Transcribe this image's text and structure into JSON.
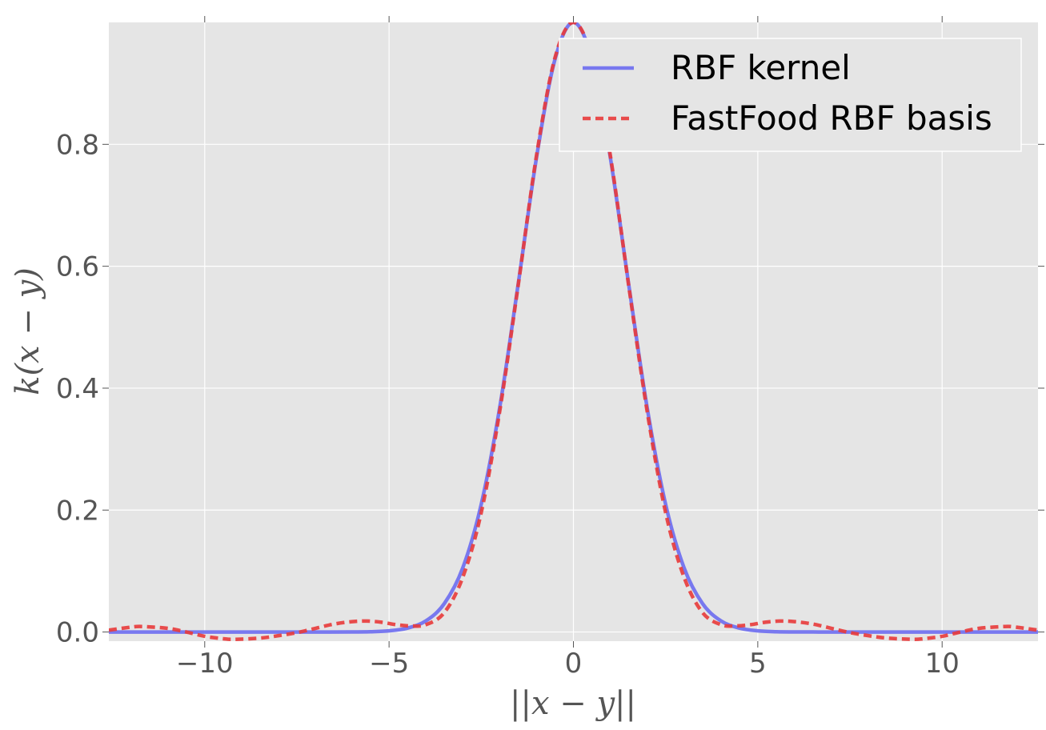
{
  "chart_data": {
    "type": "line",
    "title": "",
    "xlabel": "||x − y||",
    "ylabel": "k(x − y)",
    "xlim": [
      -12.6,
      12.6
    ],
    "ylim": [
      -0.015,
      1.0
    ],
    "grid": true,
    "legend_position": "top-right",
    "x_ticks": [
      -10,
      -5,
      0,
      5,
      10
    ],
    "x_tick_labels": [
      "−10",
      "−5",
      "0",
      "5",
      "10"
    ],
    "y_ticks": [
      0.0,
      0.2,
      0.4,
      0.6,
      0.8
    ],
    "y_tick_labels": [
      "0.0",
      "0.2",
      "0.4",
      "0.6",
      "0.8"
    ],
    "series": [
      {
        "name": "RBF kernel",
        "style": "solid",
        "color": "#6b6bef",
        "x": [
          -12.6,
          -11,
          -10,
          -9,
          -8,
          -7,
          -6,
          -5.5,
          -5,
          -4.5,
          -4,
          -3.5,
          -3,
          -2.5,
          -2,
          -1.5,
          -1,
          -0.5,
          0,
          0.5,
          1,
          1.5,
          2,
          2.5,
          3,
          3.5,
          4,
          4.5,
          5,
          5.5,
          6,
          7,
          8,
          9,
          10,
          11,
          12.6
        ],
        "y": [
          0,
          0,
          0,
          0,
          0,
          0,
          0.0001,
          0.0005,
          0.0019,
          0.0064,
          0.0183,
          0.0468,
          0.1054,
          0.2096,
          0.3679,
          0.5698,
          0.7788,
          0.9394,
          1.0,
          0.9394,
          0.7788,
          0.5698,
          0.3679,
          0.2096,
          0.1054,
          0.0468,
          0.0183,
          0.0064,
          0.0019,
          0.0005,
          0.0001,
          0,
          0,
          0,
          0,
          0,
          0
        ]
      },
      {
        "name": "FastFood RBF basis",
        "style": "dashed",
        "color": "#e83a3a",
        "x": [
          -12.6,
          -12,
          -11.7,
          -11,
          -10.5,
          -10,
          -9.5,
          -9.2,
          -8.5,
          -8,
          -7.5,
          -7,
          -6.5,
          -6,
          -5.6,
          -5.2,
          -4.8,
          -4.4,
          -4,
          -3.5,
          -3,
          -2.5,
          -2,
          -1.5,
          -1,
          -0.5,
          0,
          0.5,
          1,
          1.5,
          2,
          2.5,
          3,
          3.5,
          4,
          4.4,
          4.8,
          5.2,
          5.6,
          6,
          6.5,
          7,
          7.5,
          8,
          8.5,
          9.2,
          9.5,
          10,
          10.5,
          11,
          11.7,
          12,
          12.6
        ],
        "y": [
          0.003,
          0.008,
          0.009,
          0.006,
          0.0,
          -0.007,
          -0.011,
          -0.012,
          -0.01,
          -0.006,
          -0.001,
          0.006,
          0.013,
          0.017,
          0.018,
          0.016,
          0.012,
          0.01,
          0.012,
          0.032,
          0.09,
          0.196,
          0.362,
          0.568,
          0.782,
          0.942,
          1.0,
          0.942,
          0.782,
          0.568,
          0.362,
          0.196,
          0.09,
          0.032,
          0.012,
          0.01,
          0.012,
          0.016,
          0.018,
          0.017,
          0.013,
          0.006,
          -0.001,
          -0.006,
          -0.01,
          -0.012,
          -0.011,
          -0.007,
          0.0,
          0.006,
          0.009,
          0.008,
          0.003
        ]
      }
    ]
  }
}
